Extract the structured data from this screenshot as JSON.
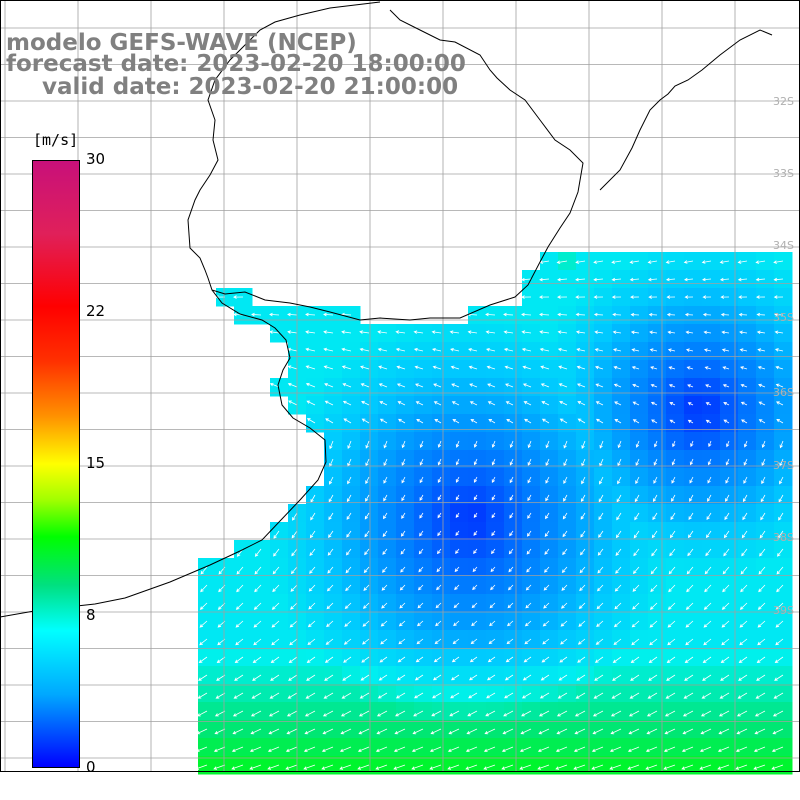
{
  "title": {
    "line1": "modelo GEFS-WAVE (NCEP)",
    "line2": "forecast date: 2023-02-20 18:00:00",
    "line3": "valid date: 2023-02-20 21:00:00"
  },
  "colorbar": {
    "unit": "[m/s]",
    "ticks": [
      "30",
      "22",
      "15",
      "8",
      "0"
    ],
    "colors": [
      "#0000ff",
      "#00a8ff",
      "#00ffff",
      "#00ff00",
      "#ffff00",
      "#ff0000",
      "#c8107a"
    ]
  },
  "lat_labels": [
    "32S",
    "33S",
    "34S",
    "35S",
    "36S",
    "37S",
    "38S",
    "39S"
  ],
  "colors": {
    "land": "#ffffff",
    "grid": "#a0a0a0",
    "coast": "#000000",
    "arrows": "#ffffff",
    "text": "#808080"
  }
}
